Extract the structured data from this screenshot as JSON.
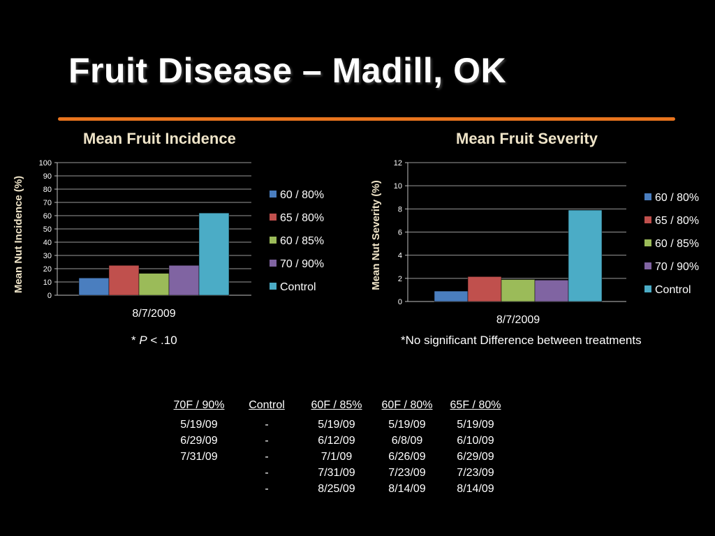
{
  "slide": {
    "title": "Fruit Disease – Madill, OK",
    "accent_color": "#e8741e",
    "note_left_prefix": "* ",
    "note_left_italic": "P",
    "note_left_suffix": " < .10",
    "note_right": "*No significant Difference between treatments"
  },
  "chart_data": [
    {
      "type": "bar",
      "title": "Mean Fruit Incidence",
      "ylabel": "Mean Nut Incidence (%)",
      "xlabel": "",
      "categories": [
        "8/7/2009"
      ],
      "ylim": [
        0,
        100
      ],
      "yticks": [
        0,
        10,
        20,
        30,
        40,
        50,
        60,
        70,
        80,
        90,
        100
      ],
      "grid": true,
      "legend": "right",
      "series": [
        {
          "name": "60 / 80%",
          "values": [
            13
          ],
          "color": "#4a7ebf"
        },
        {
          "name": "65 / 80%",
          "values": [
            22.5
          ],
          "color": "#c0504d"
        },
        {
          "name": "60 / 85%",
          "values": [
            16.5
          ],
          "color": "#9bbb59"
        },
        {
          "name": "70 / 90%",
          "values": [
            22.5
          ],
          "color": "#8064a2"
        },
        {
          "name": "Control",
          "values": [
            62
          ],
          "color": "#4bacc6"
        }
      ]
    },
    {
      "type": "bar",
      "title": "Mean Fruit Severity",
      "ylabel": "Mean Nut Severity (%)",
      "xlabel": "",
      "categories": [
        "8/7/2009"
      ],
      "ylim": [
        0,
        12
      ],
      "yticks": [
        0,
        2,
        4,
        6,
        8,
        10,
        12
      ],
      "grid": true,
      "legend": "right",
      "series": [
        {
          "name": "60 / 80%",
          "values": [
            0.9
          ],
          "color": "#4a7ebf"
        },
        {
          "name": "65 / 80%",
          "values": [
            2.15
          ],
          "color": "#c0504d"
        },
        {
          "name": "60 / 85%",
          "values": [
            1.9
          ],
          "color": "#9bbb59"
        },
        {
          "name": "70 / 90%",
          "values": [
            1.85
          ],
          "color": "#8064a2"
        },
        {
          "name": "Control",
          "values": [
            7.9
          ],
          "color": "#4bacc6"
        }
      ]
    }
  ],
  "schedule": {
    "headers": [
      "70F / 90%",
      "Control",
      "60F / 85%",
      "60F / 80%",
      "65F / 80%"
    ],
    "rows": [
      [
        "5/19/09",
        "-",
        "5/19/09",
        "5/19/09",
        "5/19/09"
      ],
      [
        "6/29/09",
        "-",
        "6/12/09",
        "6/8/09",
        "6/10/09"
      ],
      [
        "7/31/09",
        "-",
        "7/1/09",
        "6/26/09",
        "6/29/09"
      ],
      [
        "",
        "-",
        "7/31/09",
        "7/23/09",
        "7/23/09"
      ],
      [
        "",
        "-",
        "8/25/09",
        "8/14/09",
        "8/14/09"
      ]
    ]
  }
}
